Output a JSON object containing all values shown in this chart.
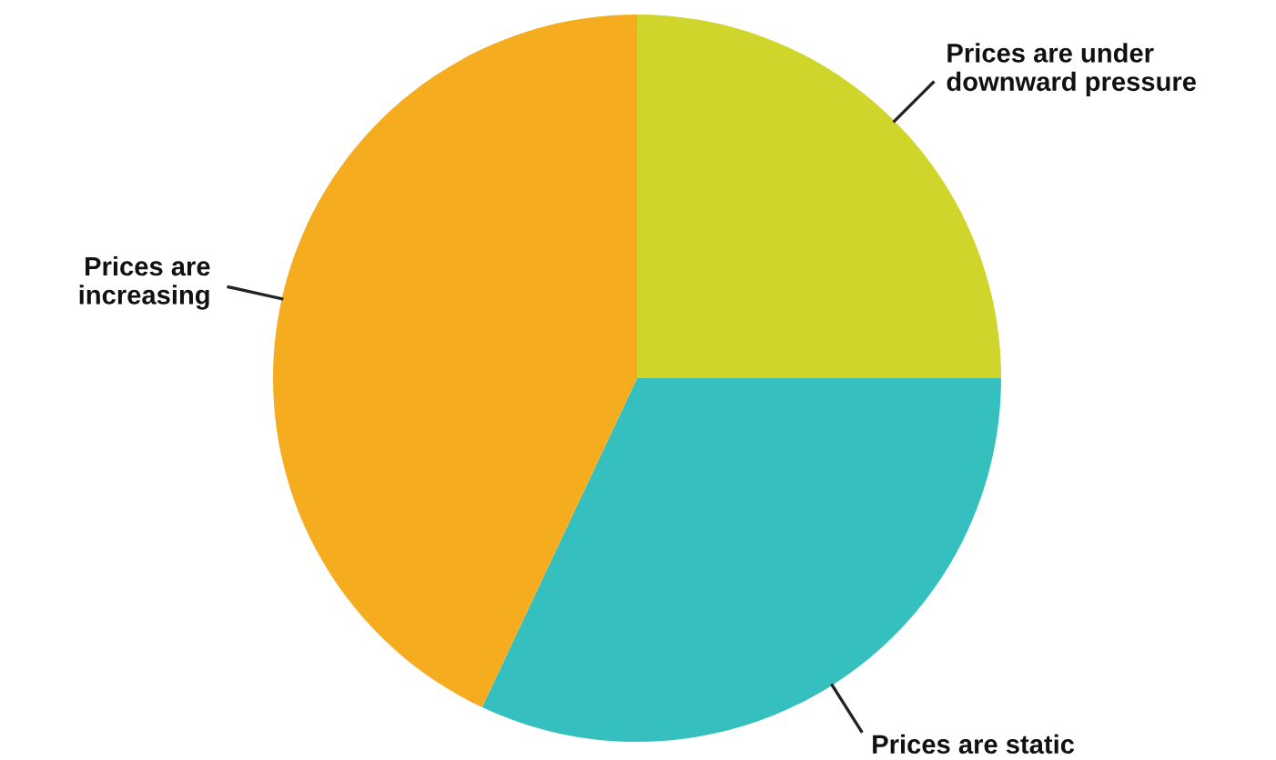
{
  "chart_data": {
    "type": "pie",
    "categories": [
      "Prices are under\ndownward pressure",
      "Prices are static",
      "Prices are\nincreasing"
    ],
    "values": [
      25,
      32,
      43
    ],
    "colors": [
      "#cfd52a",
      "#35bfbf",
      "#f5ad1f"
    ]
  }
}
